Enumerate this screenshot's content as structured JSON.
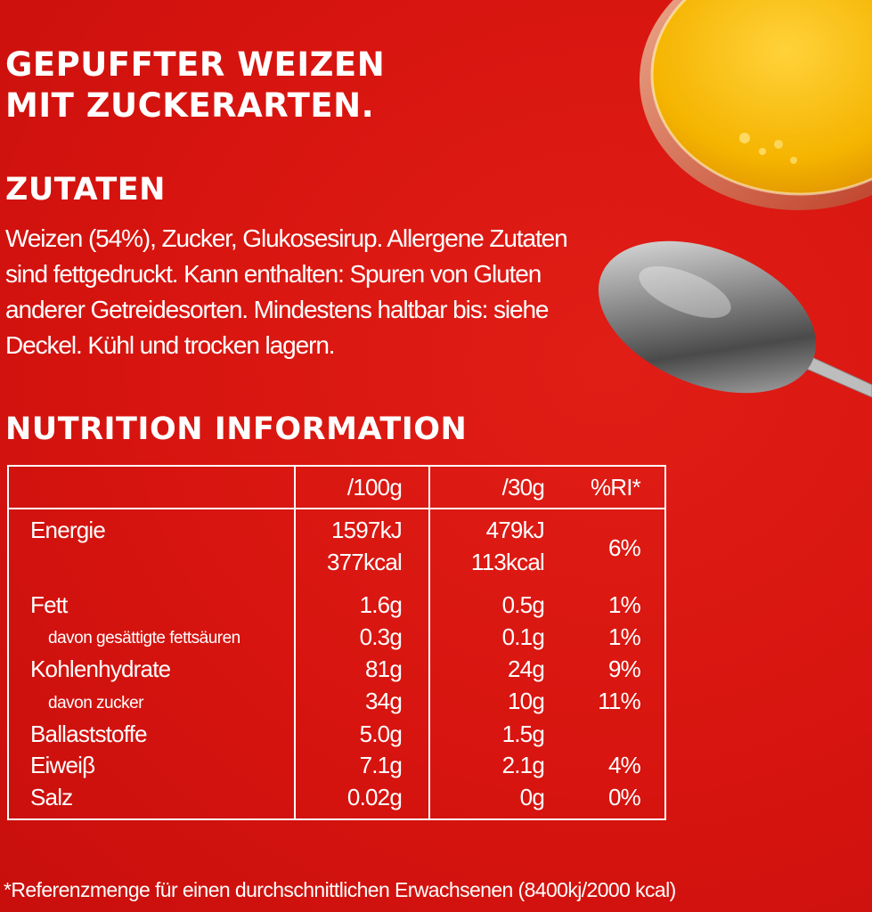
{
  "heading": {
    "line1": "GEPUFFTER WEIZEN",
    "line2": "MIT ZUCKERARTEN."
  },
  "ingredients": {
    "title": "ZUTATEN",
    "text": "Weizen (54%), Zucker, Glukosesirup. Allergene Zutaten sind fettgedruckt. Kann enthalten: Spuren von Gluten anderer Getreidesorten. Mindestens haltbar bis: siehe Deckel. Kühl und trocken lagern."
  },
  "nutrition": {
    "title": "NUTRITION INFORMATION",
    "columns": [
      "",
      "/100g",
      "/30g",
      "%RI*"
    ],
    "energy": {
      "label": "Energie",
      "per100_kj": "1597kJ",
      "per100_kcal": "377kcal",
      "per30_kj": "479kJ",
      "per30_kcal": "113kcal",
      "ri": "6%"
    },
    "rows": [
      {
        "label": "Fett",
        "sub": false,
        "per100": "1.6g",
        "per30": "0.5g",
        "ri": "1%"
      },
      {
        "label": "davon gesättigte fettsäuren",
        "sub": true,
        "per100": "0.3g",
        "per30": "0.1g",
        "ri": "1%"
      },
      {
        "label": "Kohlenhydrate",
        "sub": false,
        "per100": "81g",
        "per30": "24g",
        "ri": "9%"
      },
      {
        "label": "davon zucker",
        "sub": true,
        "per100": "34g",
        "per30": "10g",
        "ri": "11%"
      },
      {
        "label": "Ballaststoffe",
        "sub": false,
        "per100": "5.0g",
        "per30": "1.5g",
        "ri": ""
      },
      {
        "label": "Eiweiβ",
        "sub": false,
        "per100": "7.1g",
        "per30": "2.1g",
        "ri": "4%"
      },
      {
        "label": "Salz",
        "sub": false,
        "per100": "0.02g",
        "per30": "0g",
        "ri": "0%"
      }
    ]
  },
  "footnote": "*Referenzmenge für einen durchschnittlichen Erwachsenen (8400kj/2000 kcal)",
  "colors": {
    "background": "#d7140f",
    "text": "#ffffff",
    "juice": "#f7b500"
  },
  "images": [
    "orange-juice-glass",
    "spoon"
  ]
}
